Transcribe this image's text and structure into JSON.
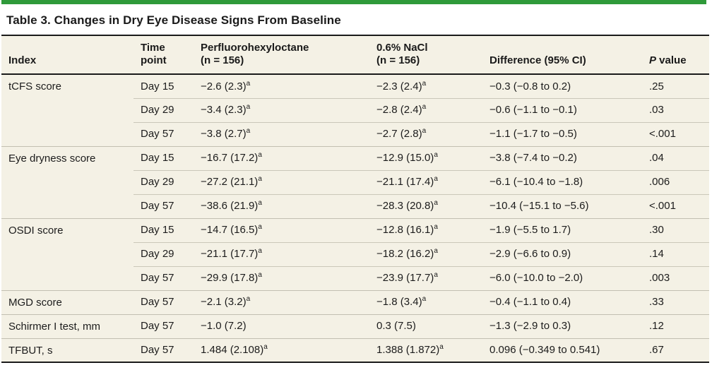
{
  "colors": {
    "accent_green": "#2f9a3a",
    "table_background": "#f4f1e5",
    "dark_rule": "#1a1a1a",
    "light_rule": "#c6c3b5"
  },
  "title": "Table 3. Changes in Dry Eye Disease Signs From Baseline",
  "table": {
    "headers": {
      "index": "Index",
      "time": {
        "l1": "Time",
        "l2": "point"
      },
      "drug": {
        "l1": "Perfluorohexyloctane",
        "l2": "(n = 156)"
      },
      "nacl": {
        "l1": "0.6% NaCl",
        "l2": "(n = 156)"
      },
      "diff": "Difference (95% CI)",
      "p": {
        "italic": "P",
        "rest": " value"
      }
    },
    "rows": [
      {
        "index": "tCFS score",
        "rowspan": 3,
        "time": "Day 15",
        "drug": "−2.6 (2.3)",
        "drug_sup": "a",
        "nacl": "−2.3 (2.4)",
        "nacl_sup": "a",
        "diff": "−0.3 (−0.8 to 0.2)",
        "p": ".25"
      },
      {
        "time": "Day 29",
        "drug": "−3.4 (2.3)",
        "drug_sup": "a",
        "nacl": "−2.8 (2.4)",
        "nacl_sup": "a",
        "diff": "−0.6 (−1.1 to −0.1)",
        "p": ".03"
      },
      {
        "time": "Day 57",
        "drug": "−3.8 (2.7)",
        "drug_sup": "a",
        "nacl": "−2.7 (2.8)",
        "nacl_sup": "a",
        "diff": "−1.1 (−1.7 to −0.5)",
        "p": "<.001"
      },
      {
        "index": "Eye dryness score",
        "rowspan": 3,
        "time": "Day 15",
        "drug": "−16.7 (17.2)",
        "drug_sup": "a",
        "nacl": "−12.9 (15.0)",
        "nacl_sup": "a",
        "diff": "−3.8 (−7.4 to −0.2)",
        "p": ".04"
      },
      {
        "time": "Day 29",
        "drug": "−27.2 (21.1)",
        "drug_sup": "a",
        "nacl": "−21.1 (17.4)",
        "nacl_sup": "a",
        "diff": "−6.1 (−10.4 to −1.8)",
        "p": ".006"
      },
      {
        "time": "Day 57",
        "drug": "−38.6 (21.9)",
        "drug_sup": "a",
        "nacl": "−28.3 (20.8)",
        "nacl_sup": "a",
        "diff": "−10.4 (−15.1 to −5.6)",
        "p": "<.001"
      },
      {
        "index": "OSDI score",
        "rowspan": 3,
        "time": "Day 15",
        "drug": "−14.7 (16.5)",
        "drug_sup": "a",
        "nacl": "−12.8 (16.1)",
        "nacl_sup": "a",
        "diff": "−1.9 (−5.5 to 1.7)",
        "p": ".30"
      },
      {
        "time": "Day 29",
        "drug": "−21.1 (17.7)",
        "drug_sup": "a",
        "nacl": "−18.2 (16.2)",
        "nacl_sup": "a",
        "diff": "−2.9 (−6.6 to 0.9)",
        "p": ".14"
      },
      {
        "time": "Day 57",
        "drug": "−29.9 (17.8)",
        "drug_sup": "a",
        "nacl": "−23.9 (17.7)",
        "nacl_sup": "a",
        "diff": "−6.0 (−10.0 to −2.0)",
        "p": ".003"
      },
      {
        "index": "MGD score",
        "rowspan": 1,
        "time": "Day 57",
        "drug": "−2.1 (3.2)",
        "drug_sup": "a",
        "nacl": "−1.8 (3.4)",
        "nacl_sup": "a",
        "diff": "−0.4 (−1.1 to 0.4)",
        "p": ".33"
      },
      {
        "index": "Schirmer I test, mm",
        "rowspan": 1,
        "time": "Day 57",
        "drug": "−1.0 (7.2)",
        "drug_sup": "",
        "nacl": "0.3 (7.5)",
        "nacl_sup": "",
        "diff": "−1.3 (−2.9 to 0.3)",
        "p": ".12"
      },
      {
        "index": "TFBUT, s",
        "rowspan": 1,
        "time": "Day 57",
        "drug": "1.484 (2.108)",
        "drug_sup": "a",
        "nacl": "1.388 (1.872)",
        "nacl_sup": "a",
        "diff": "0.096 (−0.349 to 0.541)",
        "p": ".67"
      }
    ]
  }
}
